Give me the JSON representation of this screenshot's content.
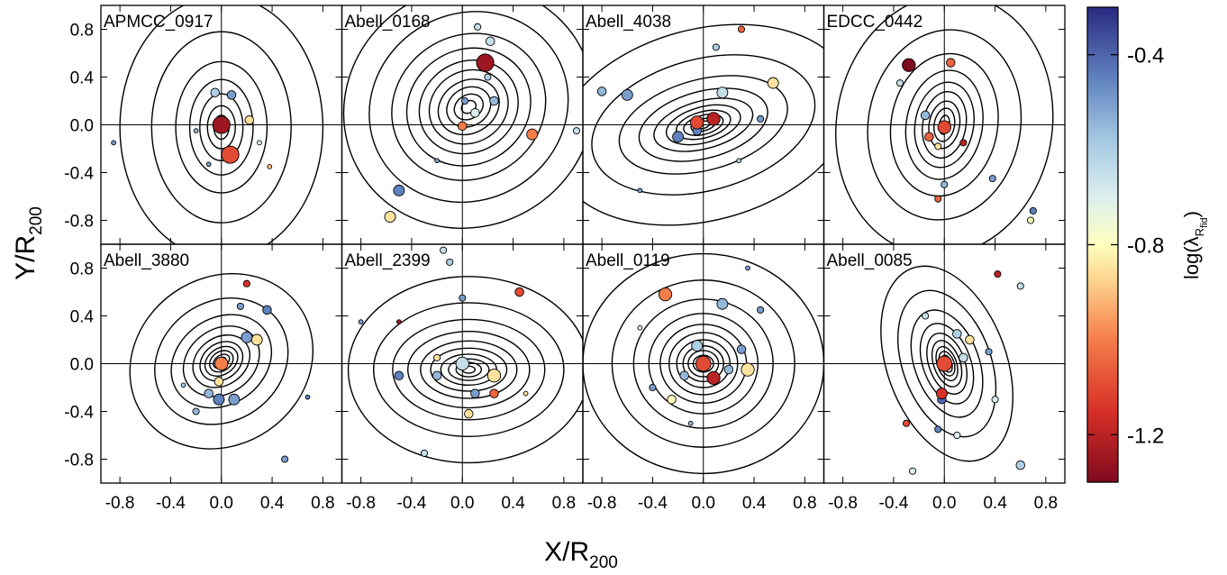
{
  "chart_data": [
    {
      "type": "scatter",
      "title": "APMCC_0917",
      "x": [
        0.0,
        0.07,
        0.22,
        -0.05,
        0.08,
        -0.2,
        -0.1,
        0.38,
        -0.85,
        0.3
      ],
      "y": [
        0.0,
        -0.25,
        0.04,
        0.27,
        0.25,
        -0.05,
        -0.33,
        -0.35,
        -0.15,
        -0.15
      ],
      "size": [
        4,
        4,
        2,
        2,
        2,
        1,
        1,
        1,
        1,
        1
      ],
      "color_values": [
        -1.25,
        -1.1,
        -0.85,
        -0.6,
        -0.5,
        -0.55,
        -0.5,
        -0.9,
        -0.5,
        -0.7
      ],
      "contour": {
        "cx": 0.0,
        "cy": -0.02,
        "angle": 0,
        "rx": [
          0.06,
          0.11,
          0.17,
          0.25,
          0.36,
          0.55,
          0.8
        ],
        "ry": [
          0.1,
          0.18,
          0.28,
          0.4,
          0.55,
          0.8,
          1.1
        ]
      }
    },
    {
      "type": "scatter",
      "title": "Abell_0168",
      "x": [
        0.18,
        0.55,
        0.0,
        -0.5,
        -0.57,
        0.22,
        0.25,
        0.2,
        0.1,
        0.9,
        0.12,
        0.02,
        -0.2
      ],
      "y": [
        0.52,
        -0.08,
        -0.01,
        -0.55,
        -0.77,
        0.7,
        0.2,
        0.4,
        0.1,
        -0.05,
        0.82,
        0.2,
        -0.3
      ],
      "size": [
        4,
        2.5,
        2,
        2.5,
        2.5,
        2,
        2,
        1.5,
        2,
        1.5,
        1.5,
        1.5,
        1
      ],
      "color_values": [
        -1.25,
        -1.0,
        -1.0,
        -0.45,
        -0.85,
        -0.65,
        -0.55,
        -0.6,
        -0.7,
        -0.65,
        -0.65,
        -0.5,
        -0.5
      ],
      "contour": {
        "cx": 0.05,
        "cy": 0.15,
        "angle": -30,
        "rx": [
          0.06,
          0.12,
          0.18,
          0.25,
          0.32,
          0.4,
          0.5,
          0.62,
          0.8,
          1.0
        ],
        "ry": [
          0.05,
          0.1,
          0.16,
          0.22,
          0.3,
          0.38,
          0.48,
          0.6,
          0.78,
          1.0
        ]
      }
    },
    {
      "type": "scatter",
      "title": "Abell_4038",
      "x": [
        -0.05,
        0.08,
        -0.2,
        0.15,
        0.55,
        -0.8,
        -0.6,
        0.3,
        0.1,
        0.45,
        -0.5,
        0.28,
        -0.05
      ],
      "y": [
        0.02,
        0.05,
        -0.1,
        0.27,
        0.35,
        0.28,
        0.25,
        0.8,
        0.65,
        0.05,
        -0.55,
        -0.3,
        -0.05
      ],
      "size": [
        3,
        3,
        2.5,
        2.5,
        2.5,
        2,
        2.5,
        1.5,
        1.5,
        1.5,
        1,
        1,
        2
      ],
      "color_values": [
        -1.1,
        -1.2,
        -0.45,
        -0.65,
        -0.85,
        -0.55,
        -0.5,
        -1.05,
        -0.6,
        -0.5,
        -0.5,
        -0.6,
        -0.45
      ],
      "contour": {
        "cx": 0.0,
        "cy": 0.0,
        "angle": -15,
        "rx": [
          0.05,
          0.1,
          0.16,
          0.22,
          0.3,
          0.4,
          0.52,
          0.68,
          0.9,
          1.2
        ],
        "ry": [
          0.03,
          0.05,
          0.08,
          0.11,
          0.15,
          0.2,
          0.28,
          0.38,
          0.55,
          0.8
        ]
      }
    },
    {
      "type": "scatter",
      "title": "EDCC_0442",
      "x": [
        -0.28,
        0.05,
        -0.35,
        -0.15,
        0.0,
        -0.12,
        0.15,
        -0.05,
        -0.05,
        0.38,
        0.7,
        0.68,
        0.0
      ],
      "y": [
        0.5,
        0.52,
        0.35,
        0.08,
        -0.02,
        -0.1,
        -0.15,
        -0.18,
        -0.62,
        -0.45,
        -0.72,
        -0.8,
        -0.5
      ],
      "size": [
        3,
        2,
        1.5,
        2,
        3,
        2,
        1.5,
        1.5,
        1.5,
        1.5,
        1.5,
        1.5,
        1.5
      ],
      "color_values": [
        -1.3,
        -1.05,
        -0.65,
        -0.55,
        -1.1,
        -1.05,
        -1.2,
        -0.85,
        -1.05,
        -0.5,
        -0.45,
        -0.8,
        -0.55
      ],
      "contour": {
        "cx": 0.0,
        "cy": 0.0,
        "angle": 10,
        "rx": [
          0.04,
          0.08,
          0.12,
          0.17,
          0.23,
          0.3,
          0.42,
          0.6,
          0.85
        ],
        "ry": [
          0.08,
          0.14,
          0.2,
          0.28,
          0.36,
          0.46,
          0.6,
          0.8,
          1.1
        ]
      }
    },
    {
      "type": "scatter",
      "title": "Abell_3880",
      "x": [
        0.0,
        -0.02,
        -0.02,
        0.1,
        -0.1,
        0.2,
        0.28,
        0.36,
        0.2,
        0.15,
        -0.2,
        0.5,
        0.68,
        -0.3
      ],
      "y": [
        0.0,
        -0.15,
        -0.3,
        -0.3,
        -0.25,
        0.22,
        0.2,
        0.45,
        0.67,
        0.48,
        -0.4,
        -0.8,
        -0.28,
        -0.18
      ],
      "size": [
        3,
        2,
        2.5,
        2.5,
        2,
        2.5,
        2.5,
        2,
        1.5,
        1.5,
        1.5,
        1.5,
        1,
        1
      ],
      "color_values": [
        -1.0,
        -0.85,
        -0.45,
        -0.5,
        -0.55,
        -0.5,
        -0.85,
        -0.45,
        -1.15,
        -0.5,
        -0.55,
        -0.5,
        -0.45,
        -0.6
      ],
      "contour": {
        "cx": 0.0,
        "cy": 0.02,
        "angle": -35,
        "rx": [
          0.04,
          0.07,
          0.1,
          0.14,
          0.18,
          0.24,
          0.32,
          0.42,
          0.55,
          0.75
        ],
        "ry": [
          0.03,
          0.05,
          0.08,
          0.11,
          0.15,
          0.2,
          0.27,
          0.36,
          0.5,
          0.7
        ]
      }
    },
    {
      "type": "scatter",
      "title": "Abell_2399",
      "x": [
        0.0,
        0.25,
        0.45,
        0.25,
        0.1,
        -0.2,
        -0.5,
        0.05,
        -0.2,
        -0.1,
        -0.15,
        -0.3,
        0.5,
        -0.8,
        -0.5,
        0.0
      ],
      "y": [
        0.0,
        -0.1,
        0.6,
        -0.25,
        -0.25,
        -0.1,
        -0.1,
        -0.42,
        0.05,
        0.85,
        0.95,
        -0.75,
        -0.25,
        0.35,
        0.35,
        0.55
      ],
      "size": [
        3,
        3,
        2,
        2,
        2,
        2,
        2,
        2,
        1.5,
        1.5,
        1.5,
        1.5,
        1,
        1,
        1,
        1.5
      ],
      "color_values": [
        -0.65,
        -0.85,
        -1.1,
        -1.05,
        -0.5,
        -0.55,
        -0.45,
        -0.85,
        -0.85,
        -0.6,
        -0.65,
        -0.65,
        -0.85,
        -0.5,
        -1.25,
        -0.5
      ],
      "contour": {
        "cx": 0.05,
        "cy": -0.05,
        "angle": 0,
        "rx": [
          0.05,
          0.1,
          0.16,
          0.22,
          0.3,
          0.38,
          0.48,
          0.6,
          0.75,
          0.95
        ],
        "ry": [
          0.03,
          0.06,
          0.09,
          0.13,
          0.18,
          0.24,
          0.32,
          0.42,
          0.56,
          0.78
        ]
      }
    },
    {
      "type": "scatter",
      "title": "Abell_0119",
      "x": [
        0.0,
        0.08,
        0.35,
        -0.3,
        0.15,
        -0.05,
        0.2,
        -0.15,
        -0.25,
        0.3,
        -0.4,
        0.45,
        -0.5,
        0.35,
        -0.1
      ],
      "y": [
        0.0,
        -0.12,
        -0.05,
        0.58,
        0.5,
        0.15,
        -0.05,
        -0.1,
        -0.3,
        0.12,
        -0.2,
        0.45,
        0.3,
        0.8,
        -0.5
      ],
      "size": [
        3.5,
        3,
        3,
        3,
        2.5,
        2.5,
        2,
        2,
        2,
        2,
        1.5,
        1.5,
        1,
        1,
        1
      ],
      "color_values": [
        -1.1,
        -1.2,
        -0.85,
        -1.0,
        -0.55,
        -0.6,
        -0.55,
        -0.55,
        -0.8,
        -0.5,
        -0.5,
        -0.5,
        -0.7,
        -0.5,
        -0.55
      ],
      "contour": {
        "cx": 0.0,
        "cy": 0.0,
        "angle": 0,
        "rx": [
          0.04,
          0.08,
          0.12,
          0.16,
          0.21,
          0.27,
          0.34,
          0.43,
          0.55,
          0.72,
          0.95
        ],
        "ry": [
          0.04,
          0.07,
          0.11,
          0.15,
          0.2,
          0.26,
          0.33,
          0.42,
          0.54,
          0.7,
          0.92
        ]
      }
    },
    {
      "type": "scatter",
      "title": "Abell_0085",
      "x": [
        0.0,
        -0.02,
        -0.02,
        0.1,
        0.15,
        0.2,
        -0.15,
        0.42,
        0.6,
        0.35,
        0.4,
        -0.3,
        -0.25,
        0.6,
        -0.05,
        0.1
      ],
      "y": [
        0.0,
        -0.25,
        -0.3,
        0.25,
        0.05,
        0.2,
        0.4,
        0.75,
        0.65,
        0.1,
        -0.3,
        -0.5,
        -0.9,
        -0.85,
        -0.55,
        -0.6
      ],
      "size": [
        3.5,
        2.5,
        2,
        2,
        2,
        2,
        1.5,
        1.5,
        1.5,
        1.5,
        1.5,
        1.5,
        1.5,
        2,
        1.5,
        1.5
      ],
      "color_values": [
        -1.1,
        -1.15,
        -0.4,
        -0.6,
        -0.65,
        -0.85,
        -0.65,
        -1.2,
        -0.65,
        -0.5,
        -0.7,
        -1.1,
        -0.7,
        -0.6,
        -0.45,
        -0.7
      ],
      "contour": {
        "cx": 0.02,
        "cy": 0.0,
        "angle": 70,
        "rx": [
          0.04,
          0.07,
          0.1,
          0.14,
          0.19,
          0.25,
          0.33,
          0.44,
          0.6,
          0.8
        ],
        "ry": [
          0.02,
          0.04,
          0.06,
          0.08,
          0.11,
          0.15,
          0.2,
          0.27,
          0.37,
          0.5
        ]
      }
    }
  ],
  "axes": {
    "x_label": "X/R",
    "x_label_sub": "200",
    "y_label": "Y/R",
    "y_label_sub": "200",
    "xlim": [
      -0.95,
      0.95
    ],
    "ylim": [
      -1,
      1
    ],
    "xticks": [
      -0.8,
      -0.4,
      {
        "value": 0,
        "label": "0.0"
      },
      0.4,
      0.8
    ],
    "yticks": [
      -0.8,
      -0.4,
      {
        "value": 0,
        "label": "0.0"
      },
      0.4,
      0.8
    ]
  },
  "colorbar": {
    "label": "log(λ",
    "label_sub": "R",
    "label_sub2": "fid",
    "label_end": ")",
    "clim": [
      -1.3,
      -0.3
    ],
    "ticks": [
      -0.4,
      -0.8,
      -1.2
    ],
    "colormap": [
      {
        "value": -1.3,
        "color": "#7f0a1e"
      },
      {
        "value": -1.15,
        "color": "#d73027"
      },
      {
        "value": -1.0,
        "color": "#f47d4a"
      },
      {
        "value": -0.88,
        "color": "#fdd08a"
      },
      {
        "value": -0.8,
        "color": "#ffffbf"
      },
      {
        "value": -0.7,
        "color": "#dcefef"
      },
      {
        "value": -0.58,
        "color": "#a4c8e2"
      },
      {
        "value": -0.45,
        "color": "#5f82bf"
      },
      {
        "value": -0.3,
        "color": "#2a2a82"
      }
    ]
  }
}
